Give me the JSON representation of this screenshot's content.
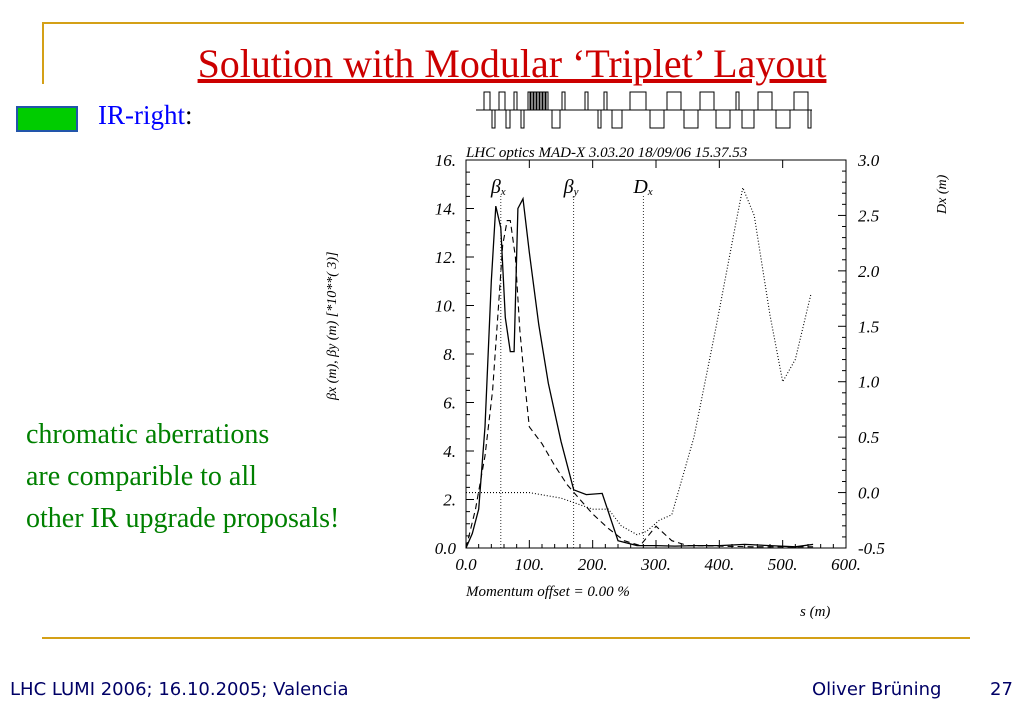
{
  "slide": {
    "title": "Solution with Modular ‘Triplet’ Layout",
    "legend_label": "IR-right",
    "legend_colon": ":",
    "legend_color": "#00cc00",
    "note_lines": [
      "chromatic aberrations",
      "are comparible to all",
      "other IR upgrade proposals!"
    ],
    "footer_left": "LHC LUMI 2006; 16.10.2005; Valencia",
    "footer_author": "Oliver Brüning",
    "page_number": "27"
  },
  "chart_data": {
    "type": "line",
    "header": "LHC optics MAD-X 3.03.20   18/09/06 15.37.53",
    "footer": "Momentum offset =     0.00 %",
    "xlabel": "s (m)",
    "ylabel_left": "βx (m), βy (m)     [*10**(   3)]",
    "ylabel_right": "Dx (m)",
    "xlim": [
      0,
      600
    ],
    "ylim_left": [
      0,
      16
    ],
    "ylim_right": [
      -0.5,
      3.0
    ],
    "x_ticks": [
      "0.0",
      "100.",
      "200.",
      "300.",
      "400.",
      "500.",
      "600."
    ],
    "y_ticks_left": [
      "0.0",
      "2.",
      "4.",
      "6.",
      "8.",
      "10.",
      "12.",
      "14.",
      "16."
    ],
    "y_ticks_right": [
      "-0.5",
      "0.0",
      "0.5",
      "1.0",
      "1.5",
      "2.0",
      "2.5",
      "3.0"
    ],
    "legend": [
      {
        "symbol": "β",
        "sub": "x",
        "x": 55,
        "style": "solid"
      },
      {
        "symbol": "β",
        "sub": "y",
        "x": 170,
        "style": "dashed"
      },
      {
        "symbol": "D",
        "sub": "x",
        "x": 280,
        "style": "dotted"
      }
    ],
    "series": [
      {
        "name": "βx",
        "axis": "left",
        "style": "solid",
        "x": [
          0,
          10,
          20,
          30,
          40,
          47,
          55,
          62,
          70,
          76,
          82,
          90,
          100,
          115,
          130,
          150,
          170,
          190,
          215,
          240,
          270,
          300,
          330,
          360,
          400,
          440,
          480,
          520,
          548
        ],
        "y": [
          0,
          0.6,
          1.6,
          5,
          11,
          14.1,
          13.2,
          9.5,
          8.1,
          8.1,
          14.0,
          14.4,
          12.2,
          9.2,
          6.8,
          4.4,
          2.4,
          2.2,
          2.25,
          0.3,
          0.1,
          0.1,
          0.08,
          0.1,
          0.1,
          0.15,
          0.1,
          0.05,
          0.15
        ]
      },
      {
        "name": "βy",
        "axis": "left",
        "style": "dashed",
        "x": [
          0,
          15,
          30,
          42,
          50,
          58,
          65,
          70,
          78,
          85,
          92,
          100,
          120,
          140,
          160,
          180,
          200,
          225,
          250,
          275,
          300,
          325,
          350,
          400,
          450,
          500,
          548
        ],
        "y": [
          0,
          1.6,
          3.8,
          6.5,
          9.5,
          12.5,
          13.5,
          13.5,
          12,
          9.0,
          7.0,
          5.0,
          4.3,
          3.4,
          2.6,
          2.0,
          1.4,
          0.8,
          0.3,
          0.1,
          0.9,
          0.3,
          0.1,
          0.08,
          0.05,
          0.05,
          0.05
        ]
      },
      {
        "name": "Dx",
        "axis": "right",
        "style": "dotted",
        "x": [
          0,
          50,
          100,
          150,
          200,
          225,
          245,
          270,
          285,
          305,
          325,
          360,
          395,
          425,
          437,
          455,
          480,
          500,
          520,
          545
        ],
        "y": [
          0.0,
          0.0,
          0.0,
          -0.05,
          -0.15,
          -0.15,
          -0.3,
          -0.38,
          -0.35,
          -0.25,
          -0.2,
          0.5,
          1.5,
          2.4,
          2.75,
          2.5,
          1.6,
          1.0,
          1.2,
          1.8
        ]
      }
    ]
  }
}
